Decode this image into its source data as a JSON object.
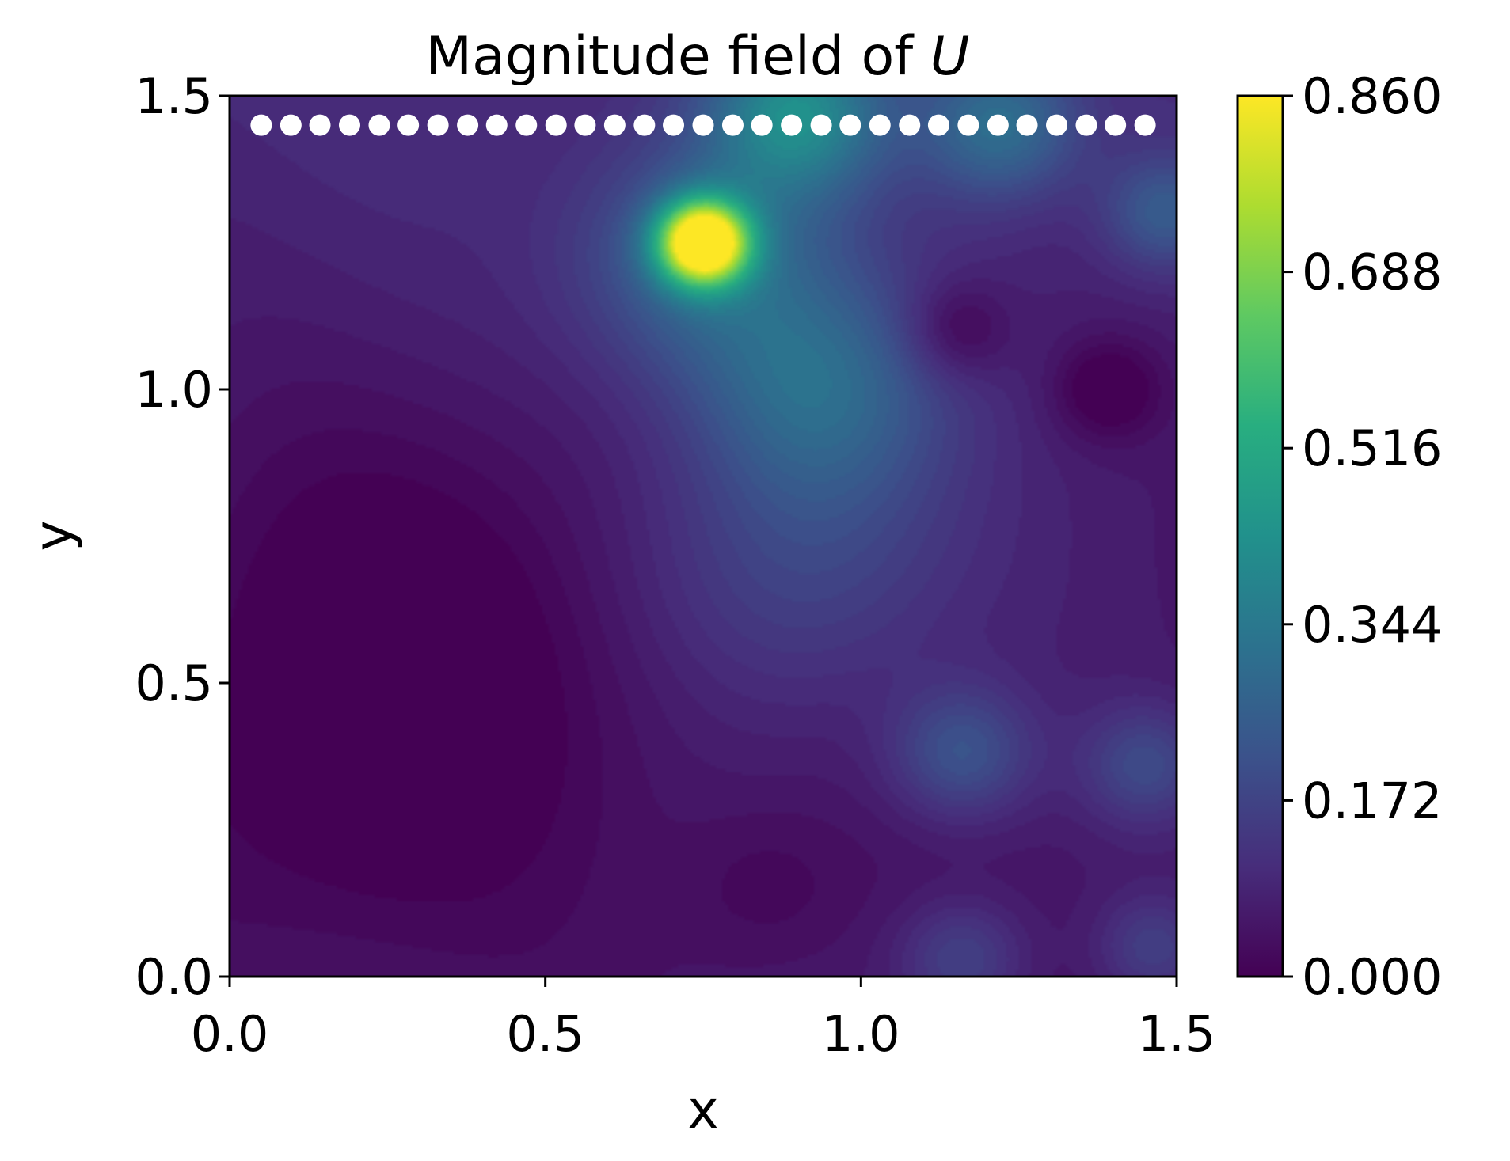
{
  "chart_data": {
    "type": "heatmap",
    "title": "Magnitude field of ",
    "title_variable": "U",
    "xlabel": "x",
    "ylabel": "y",
    "xlim": [
      0.0,
      1.5
    ],
    "ylim": [
      0.0,
      1.5
    ],
    "x_ticks": [
      "0.0",
      "0.5",
      "1.0",
      "1.5"
    ],
    "y_ticks": [
      "0.0",
      "0.5",
      "1.0",
      "1.5"
    ],
    "colormap": "viridis",
    "colorbar": {
      "range": [
        0.0,
        0.86
      ],
      "ticks": [
        "0.000",
        "0.172",
        "0.344",
        "0.516",
        "0.688",
        "0.860"
      ],
      "placement": "right"
    },
    "grid": false,
    "sensor_points": {
      "color": "#ffffff",
      "y": 1.45,
      "x": [
        0.05,
        0.097,
        0.143,
        0.19,
        0.237,
        0.283,
        0.33,
        0.377,
        0.423,
        0.47,
        0.517,
        0.563,
        0.61,
        0.657,
        0.703,
        0.75,
        0.797,
        0.843,
        0.89,
        0.937,
        0.983,
        1.03,
        1.077,
        1.123,
        1.17,
        1.217,
        1.263,
        1.31,
        1.357,
        1.403,
        1.45
      ]
    },
    "source_point": {
      "x": 0.75,
      "y": 1.25,
      "value": 0.86
    },
    "field_features": [
      {
        "x": 0.75,
        "y": 1.25,
        "value": 0.86,
        "spread": 0.05
      },
      {
        "x": 0.75,
        "y": 1.22,
        "value": 0.2,
        "spread": 0.14
      },
      {
        "x": 0.9,
        "y": 1.47,
        "value": 0.3,
        "spread": 0.1
      },
      {
        "x": 1.22,
        "y": 1.45,
        "value": 0.22,
        "spread": 0.09
      },
      {
        "x": 1.48,
        "y": 1.3,
        "value": 0.16,
        "spread": 0.07
      },
      {
        "x": 0.93,
        "y": 1.0,
        "value": 0.2,
        "spread": 0.14
      },
      {
        "x": 0.9,
        "y": 0.7,
        "value": 0.12,
        "spread": 0.18
      },
      {
        "x": 1.16,
        "y": 0.38,
        "value": 0.16,
        "spread": 0.08
      },
      {
        "x": 1.45,
        "y": 0.36,
        "value": 0.13,
        "spread": 0.07
      },
      {
        "x": 1.16,
        "y": 0.03,
        "value": 0.12,
        "spread": 0.07
      },
      {
        "x": 1.46,
        "y": 0.05,
        "value": 0.1,
        "spread": 0.06
      },
      {
        "x": 0.3,
        "y": 0.6,
        "value": -0.08,
        "spread": 0.28
      },
      {
        "x": 0.15,
        "y": 0.3,
        "value": -0.04,
        "spread": 0.22
      },
      {
        "x": 0.85,
        "y": 0.15,
        "value": -0.04,
        "spread": 0.1
      },
      {
        "x": 1.15,
        "y": 1.1,
        "value": -0.1,
        "spread": 0.06
      },
      {
        "x": 1.39,
        "y": 1.0,
        "value": -0.1,
        "spread": 0.06
      }
    ]
  }
}
